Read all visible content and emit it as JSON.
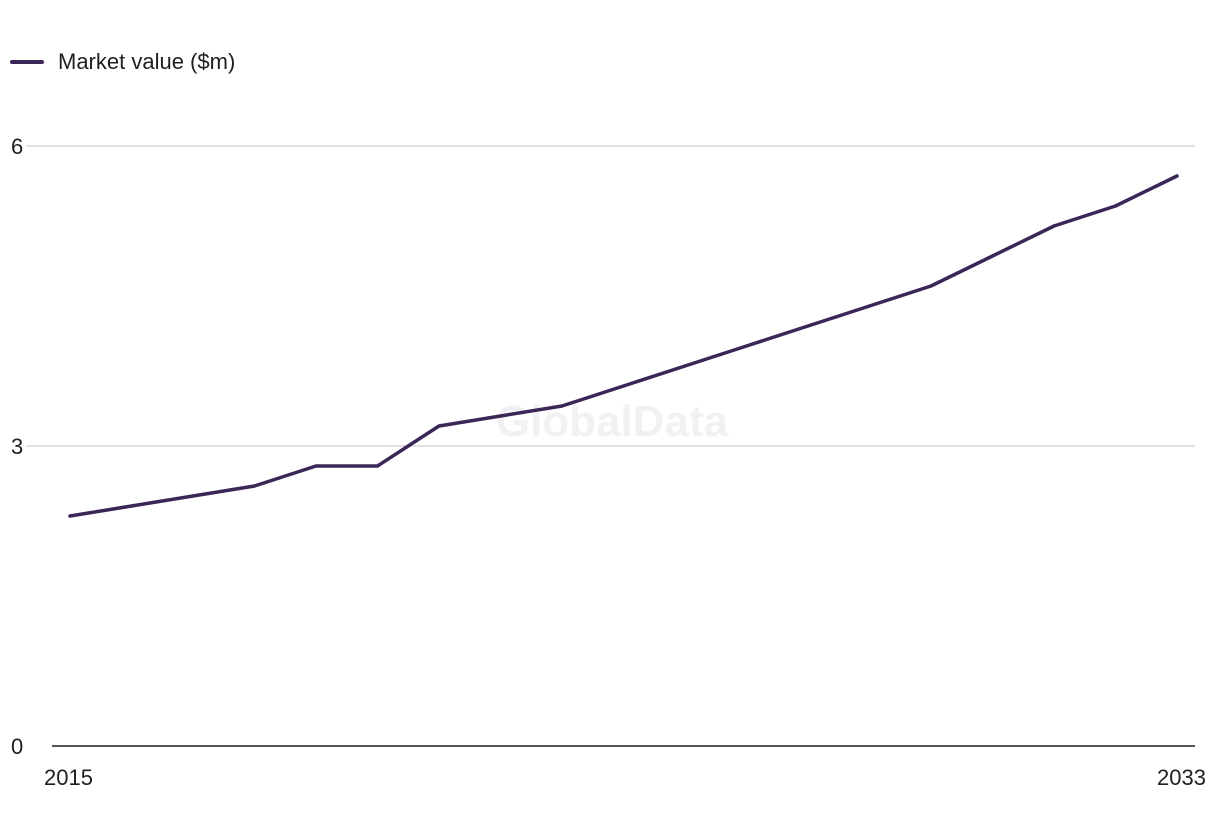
{
  "chart_data": {
    "type": "line",
    "title": "",
    "xlabel": "",
    "ylabel": "",
    "legend": {
      "position": "top-left",
      "entries": [
        "Market value ($m)"
      ]
    },
    "x": [
      2015,
      2016,
      2017,
      2018,
      2019,
      2020,
      2021,
      2022,
      2023,
      2024,
      2025,
      2026,
      2027,
      2028,
      2029,
      2030,
      2031,
      2032,
      2033
    ],
    "x_tick_labels": [
      "2015",
      "2033"
    ],
    "xlim": [
      2015,
      2033
    ],
    "ylim": [
      0,
      6
    ],
    "y_ticks": [
      0,
      3,
      6
    ],
    "y_tick_labels": [
      "0",
      "3",
      "6"
    ],
    "grid": true,
    "series": [
      {
        "name": "Market value ($m)",
        "color": "#3b2657",
        "values": [
          2.3,
          2.4,
          2.5,
          2.6,
          2.8,
          2.8,
          3.2,
          3.3,
          3.4,
          3.6,
          3.8,
          4.0,
          4.2,
          4.4,
          4.6,
          4.9,
          5.2,
          5.4,
          5.7
        ]
      }
    ]
  },
  "watermark": "GlobalData",
  "colors": {
    "line": "#3b2657",
    "grid": "#d9d9de",
    "axis": "#1f1f1f",
    "watermark": "#f1f1f4"
  }
}
